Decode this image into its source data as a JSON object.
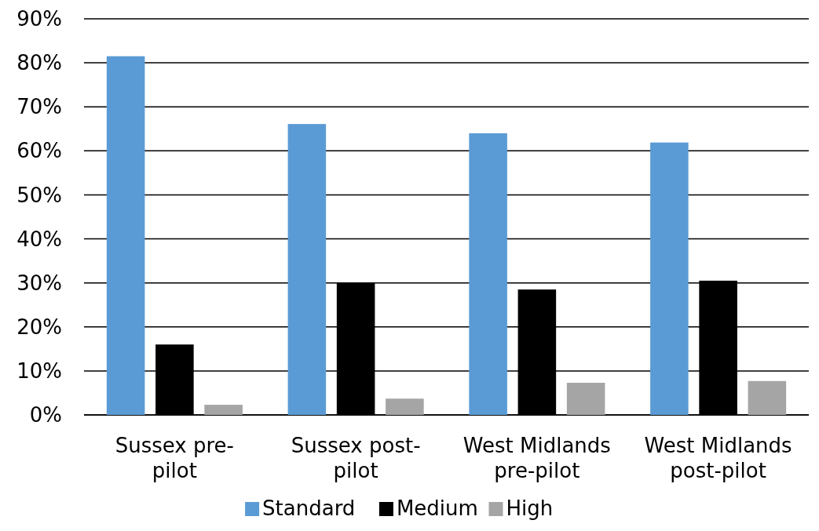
{
  "chart_data": {
    "type": "bar",
    "categories": [
      "Sussex pre-pilot",
      "Sussex post-pilot",
      "West Midlands pre-pilot",
      "West Midlands post-pilot"
    ],
    "series": [
      {
        "name": "Standard",
        "color": "#5b9bd5",
        "values": [
          81.5,
          66.1,
          64,
          61.9
        ]
      },
      {
        "name": "Medium",
        "color": "#000000",
        "values": [
          16,
          30,
          28.5,
          30.5
        ]
      },
      {
        "name": "High",
        "color": "#a5a5a5",
        "values": [
          2.3,
          3.7,
          7.3,
          7.7
        ]
      }
    ],
    "ylim": [
      0,
      90
    ],
    "yticks": [
      {
        "value": 0,
        "label": "0%"
      },
      {
        "value": 10,
        "label": "10%"
      },
      {
        "value": 20,
        "label": "20%"
      },
      {
        "value": 30,
        "label": "30%"
      },
      {
        "value": 40,
        "label": "40%"
      },
      {
        "value": 50,
        "label": "50%"
      },
      {
        "value": 60,
        "label": "60%"
      },
      {
        "value": 70,
        "label": "70%"
      },
      {
        "value": 80,
        "label": "80%"
      },
      {
        "value": 90,
        "label": "90%"
      }
    ],
    "grid": "y",
    "legend": "bottom"
  }
}
